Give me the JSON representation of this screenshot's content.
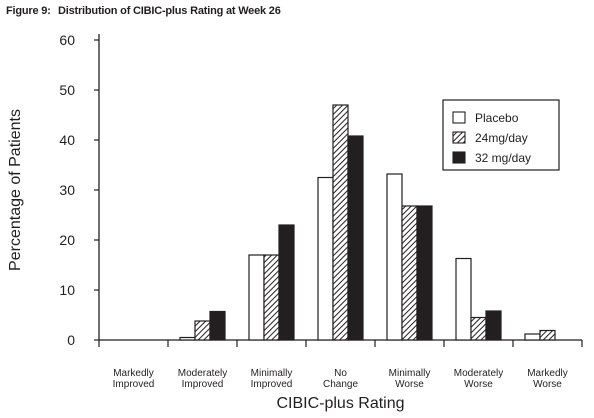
{
  "figure_label": "Figure 9:",
  "chart_data": {
    "type": "bar",
    "title": "Distribution of CIBIC-plus Rating at Week 26",
    "xlabel": "CIBIC-plus Rating",
    "ylabel": "Percentage of Patients",
    "ylim": [
      0,
      60
    ],
    "yticks": [
      0,
      10,
      20,
      30,
      40,
      50,
      60
    ],
    "grid": false,
    "legend_position": "top-right",
    "categories": [
      [
        "Markedly",
        "Improved"
      ],
      [
        "Moderately",
        "Improved"
      ],
      [
        "Minimally",
        "Improved"
      ],
      [
        "No",
        "Change"
      ],
      [
        "Minimally",
        "Worse"
      ],
      [
        "Moderately",
        "Worse"
      ],
      [
        "Markedly",
        "Worse"
      ]
    ],
    "series": [
      {
        "name": "Placebo",
        "pattern": "open",
        "values": [
          0,
          0.5,
          17,
          32.5,
          33.2,
          16.3,
          1.2
        ]
      },
      {
        "name": "24mg/day",
        "pattern": "hatched",
        "values": [
          0,
          3.8,
          17,
          47,
          26.8,
          4.5,
          1.9
        ]
      },
      {
        "name": "32 mg/day",
        "pattern": "solid",
        "values": [
          0,
          5.7,
          23,
          40.8,
          26.8,
          5.8,
          0
        ]
      }
    ]
  }
}
